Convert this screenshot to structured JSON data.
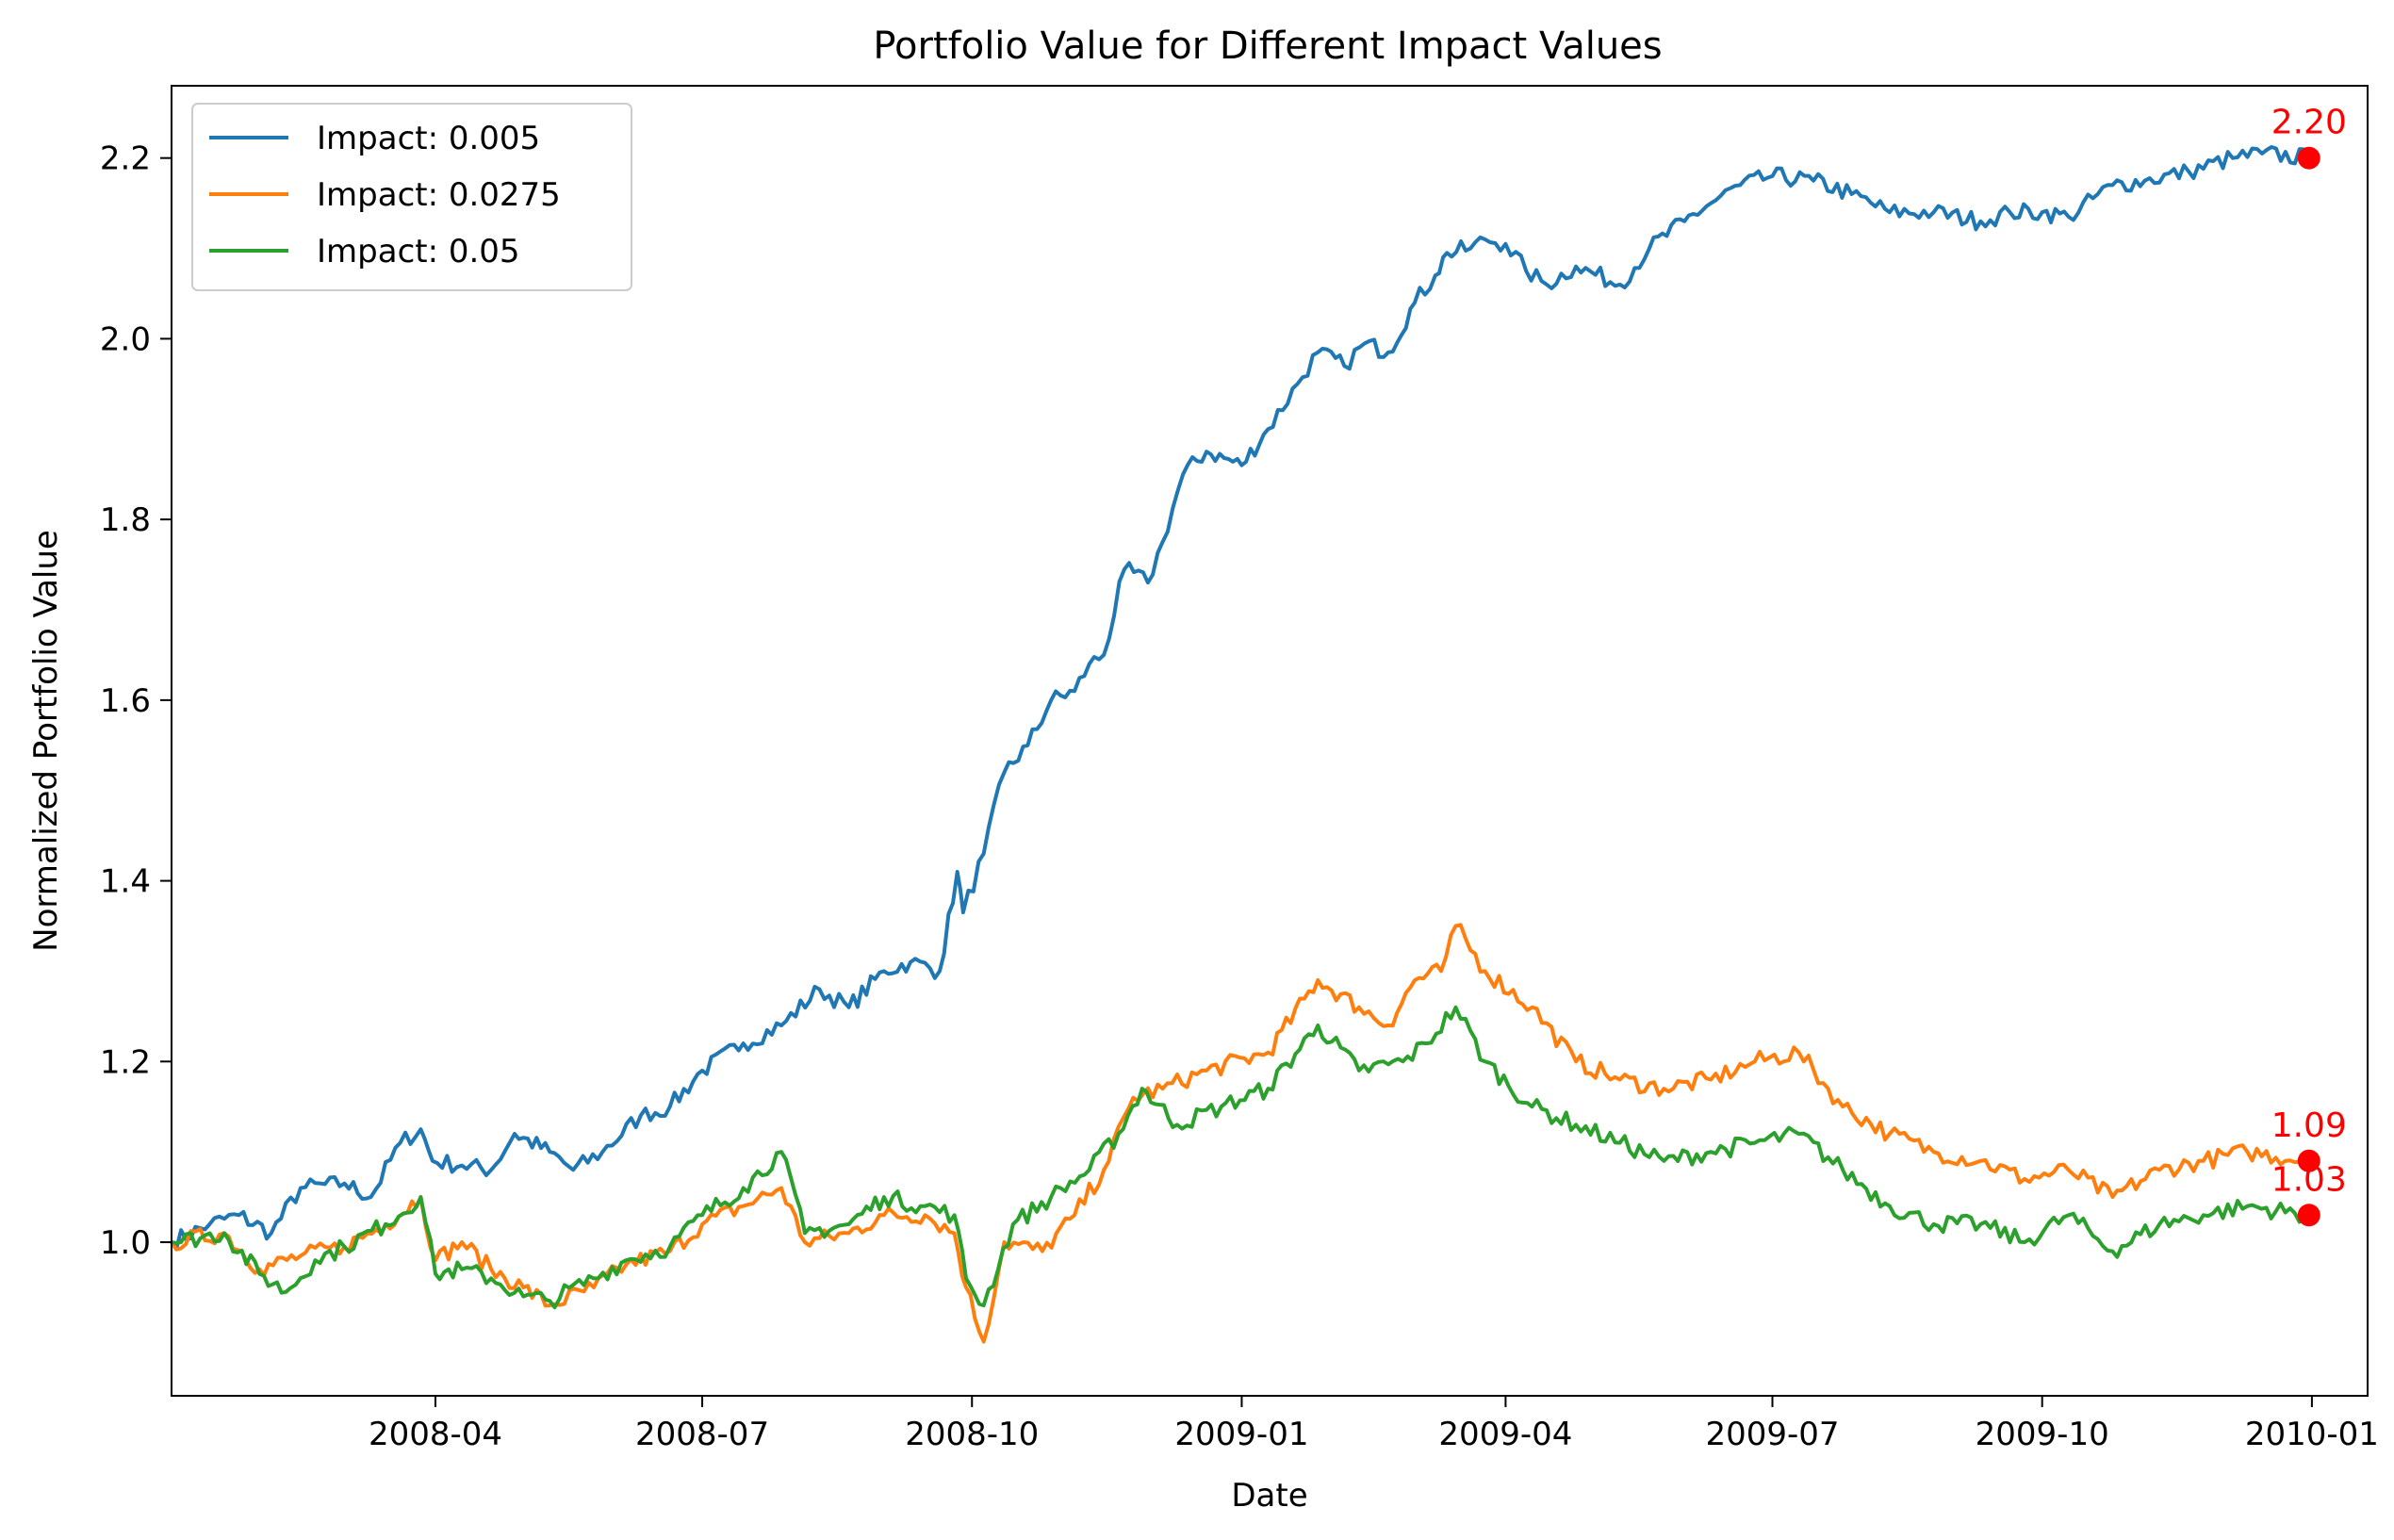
{
  "chart_data": {
    "type": "line",
    "title": "Portfolio Value for Different Impact Values",
    "xlabel": "Date",
    "ylabel": "Normalized Portfolio Value",
    "x_range": [
      "2008-01-02",
      "2010-01-20"
    ],
    "ylim": [
      0.83,
      2.28
    ],
    "y_ticks": [
      1.0,
      1.2,
      1.4,
      1.6,
      1.8,
      2.0,
      2.2
    ],
    "y_tick_labels": [
      "1.0",
      "1.2",
      "1.4",
      "1.6",
      "1.8",
      "2.0",
      "2.2"
    ],
    "x_ticks": [
      "2008-04-01",
      "2008-07-01",
      "2008-10-01",
      "2009-01-01",
      "2009-04-01",
      "2009-07-01",
      "2009-10-01",
      "2010-01-01"
    ],
    "x_tick_labels": [
      "2008-04",
      "2008-07",
      "2008-10",
      "2009-01",
      "2009-04",
      "2009-07",
      "2009-10",
      "2010-01"
    ],
    "grid": false,
    "legend_position": "top-left",
    "series": [
      {
        "name": "Impact: 0.005",
        "color": "#1f77b4",
        "points": [
          [
            "2008-01-02",
            1.0
          ],
          [
            "2008-01-15",
            1.02
          ],
          [
            "2008-01-25",
            1.03
          ],
          [
            "2008-02-05",
            1.01
          ],
          [
            "2008-02-15",
            1.06
          ],
          [
            "2008-03-01",
            1.065
          ],
          [
            "2008-03-10",
            1.05
          ],
          [
            "2008-03-20",
            1.11
          ],
          [
            "2008-03-27",
            1.125
          ],
          [
            "2008-03-31",
            1.09
          ],
          [
            "2008-04-10",
            1.085
          ],
          [
            "2008-04-20",
            1.08
          ],
          [
            "2008-04-28",
            1.12
          ],
          [
            "2008-05-10",
            1.1
          ],
          [
            "2008-05-18",
            1.08
          ],
          [
            "2008-05-28",
            1.1
          ],
          [
            "2008-06-10",
            1.14
          ],
          [
            "2008-06-20",
            1.15
          ],
          [
            "2008-07-01",
            1.19
          ],
          [
            "2008-07-15",
            1.22
          ],
          [
            "2008-07-28",
            1.24
          ],
          [
            "2008-08-10",
            1.28
          ],
          [
            "2008-08-20",
            1.26
          ],
          [
            "2008-09-01",
            1.3
          ],
          [
            "2008-09-10",
            1.31
          ],
          [
            "2008-09-20",
            1.3
          ],
          [
            "2008-09-26",
            1.41
          ],
          [
            "2008-09-28",
            1.365
          ],
          [
            "2008-10-05",
            1.43
          ],
          [
            "2008-10-12",
            1.52
          ],
          [
            "2008-10-20",
            1.55
          ],
          [
            "2008-10-28",
            1.6
          ],
          [
            "2008-11-05",
            1.61
          ],
          [
            "2008-11-10",
            1.64
          ],
          [
            "2008-11-15",
            1.65
          ],
          [
            "2008-11-22",
            1.745
          ],
          [
            "2008-11-30",
            1.73
          ],
          [
            "2008-12-05",
            1.775
          ],
          [
            "2008-12-12",
            1.85
          ],
          [
            "2008-12-20",
            1.875
          ],
          [
            "2009-01-01",
            1.86
          ],
          [
            "2009-01-10",
            1.9
          ],
          [
            "2009-01-20",
            1.95
          ],
          [
            "2009-01-27",
            1.985
          ],
          [
            "2009-02-05",
            1.97
          ],
          [
            "2009-02-12",
            1.995
          ],
          [
            "2009-02-20",
            1.985
          ],
          [
            "2009-03-01",
            2.04
          ],
          [
            "2009-03-08",
            2.07
          ],
          [
            "2009-03-12",
            2.095
          ],
          [
            "2009-03-20",
            2.1
          ],
          [
            "2009-03-25",
            2.11
          ],
          [
            "2009-04-01",
            2.105
          ],
          [
            "2009-04-08",
            2.075
          ],
          [
            "2009-04-15",
            2.06
          ],
          [
            "2009-04-25",
            2.08
          ],
          [
            "2009-05-10",
            2.06
          ],
          [
            "2009-05-20",
            2.1
          ],
          [
            "2009-06-01",
            2.13
          ],
          [
            "2009-06-10",
            2.15
          ],
          [
            "2009-06-20",
            2.17
          ],
          [
            "2009-07-01",
            2.18
          ],
          [
            "2009-07-15",
            2.175
          ],
          [
            "2009-07-28",
            2.16
          ],
          [
            "2009-08-10",
            2.14
          ],
          [
            "2009-08-25",
            2.14
          ],
          [
            "2009-09-10",
            2.13
          ],
          [
            "2009-09-20",
            2.14
          ],
          [
            "2009-10-01",
            2.14
          ],
          [
            "2009-10-10",
            2.135
          ],
          [
            "2009-10-25",
            2.17
          ],
          [
            "2009-11-05",
            2.175
          ],
          [
            "2009-11-20",
            2.185
          ],
          [
            "2009-12-05",
            2.2
          ],
          [
            "2009-12-15",
            2.205
          ],
          [
            "2009-12-31",
            2.2
          ]
        ]
      },
      {
        "name": "Impact: 0.0275",
        "color": "#ff7f0e",
        "points": [
          [
            "2008-01-02",
            1.0
          ],
          [
            "2008-01-20",
            1.01
          ],
          [
            "2008-02-01",
            0.97
          ],
          [
            "2008-02-15",
            0.985
          ],
          [
            "2008-03-01",
            0.995
          ],
          [
            "2008-03-15",
            1.02
          ],
          [
            "2008-03-27",
            1.05
          ],
          [
            "2008-04-01",
            0.98
          ],
          [
            "2008-04-10",
            1.0
          ],
          [
            "2008-04-20",
            0.97
          ],
          [
            "2008-05-01",
            0.95
          ],
          [
            "2008-05-10",
            0.93
          ],
          [
            "2008-05-25",
            0.95
          ],
          [
            "2008-06-05",
            0.975
          ],
          [
            "2008-06-20",
            0.99
          ],
          [
            "2008-07-01",
            1.02
          ],
          [
            "2008-07-15",
            1.04
          ],
          [
            "2008-07-28",
            1.06
          ],
          [
            "2008-08-05",
            1.0
          ],
          [
            "2008-08-20",
            1.01
          ],
          [
            "2008-09-01",
            1.03
          ],
          [
            "2008-09-15",
            1.03
          ],
          [
            "2008-09-25",
            1.01
          ],
          [
            "2008-09-29",
            0.95
          ],
          [
            "2008-10-05",
            0.89
          ],
          [
            "2008-10-12",
            1.0
          ],
          [
            "2008-10-25",
            0.99
          ],
          [
            "2008-11-05",
            1.03
          ],
          [
            "2008-11-15",
            1.08
          ],
          [
            "2008-11-25",
            1.16
          ],
          [
            "2008-12-05",
            1.17
          ],
          [
            "2008-12-20",
            1.19
          ],
          [
            "2009-01-10",
            1.21
          ],
          [
            "2009-01-27",
            1.29
          ],
          [
            "2009-02-10",
            1.26
          ],
          [
            "2009-02-20",
            1.24
          ],
          [
            "2009-03-01",
            1.29
          ],
          [
            "2009-03-10",
            1.3
          ],
          [
            "2009-03-15",
            1.35
          ],
          [
            "2009-03-25",
            1.3
          ],
          [
            "2009-04-10",
            1.26
          ],
          [
            "2009-04-25",
            1.2
          ],
          [
            "2009-05-10",
            1.18
          ],
          [
            "2009-05-25",
            1.17
          ],
          [
            "2009-06-10",
            1.18
          ],
          [
            "2009-06-25",
            1.2
          ],
          [
            "2009-07-10",
            1.21
          ],
          [
            "2009-07-25",
            1.15
          ],
          [
            "2009-08-10",
            1.12
          ],
          [
            "2009-08-25",
            1.1
          ],
          [
            "2009-09-10",
            1.09
          ],
          [
            "2009-09-25",
            1.07
          ],
          [
            "2009-10-10",
            1.08
          ],
          [
            "2009-10-25",
            1.05
          ],
          [
            "2009-11-10",
            1.08
          ],
          [
            "2009-11-25",
            1.09
          ],
          [
            "2009-12-10",
            1.1
          ],
          [
            "2009-12-31",
            1.09
          ]
        ]
      },
      {
        "name": "Impact: 0.05",
        "color": "#2ca02c",
        "points": [
          [
            "2008-01-02",
            1.0
          ],
          [
            "2008-01-20",
            1.01
          ],
          [
            "2008-02-01",
            0.965
          ],
          [
            "2008-02-10",
            0.945
          ],
          [
            "2008-02-20",
            0.98
          ],
          [
            "2008-03-01",
            0.995
          ],
          [
            "2008-03-15",
            1.02
          ],
          [
            "2008-03-27",
            1.05
          ],
          [
            "2008-04-01",
            0.965
          ],
          [
            "2008-04-10",
            0.97
          ],
          [
            "2008-04-20",
            0.96
          ],
          [
            "2008-05-01",
            0.94
          ],
          [
            "2008-05-10",
            0.935
          ],
          [
            "2008-05-25",
            0.96
          ],
          [
            "2008-06-05",
            0.98
          ],
          [
            "2008-06-20",
            0.995
          ],
          [
            "2008-07-01",
            1.03
          ],
          [
            "2008-07-15",
            1.06
          ],
          [
            "2008-07-28",
            1.1
          ],
          [
            "2008-08-05",
            1.01
          ],
          [
            "2008-08-20",
            1.02
          ],
          [
            "2008-09-01",
            1.05
          ],
          [
            "2008-09-15",
            1.04
          ],
          [
            "2008-09-25",
            1.03
          ],
          [
            "2008-09-29",
            0.96
          ],
          [
            "2008-10-05",
            0.93
          ],
          [
            "2008-10-15",
            1.02
          ],
          [
            "2008-10-28",
            1.05
          ],
          [
            "2008-11-10",
            1.08
          ],
          [
            "2008-11-20",
            1.12
          ],
          [
            "2008-11-28",
            1.17
          ],
          [
            "2008-12-10",
            1.13
          ],
          [
            "2008-12-25",
            1.15
          ],
          [
            "2009-01-10",
            1.17
          ],
          [
            "2009-01-27",
            1.24
          ],
          [
            "2009-02-10",
            1.19
          ],
          [
            "2009-02-25",
            1.2
          ],
          [
            "2009-03-05",
            1.22
          ],
          [
            "2009-03-15",
            1.26
          ],
          [
            "2009-03-25",
            1.2
          ],
          [
            "2009-04-10",
            1.15
          ],
          [
            "2009-04-25",
            1.13
          ],
          [
            "2009-05-10",
            1.11
          ],
          [
            "2009-05-25",
            1.09
          ],
          [
            "2009-06-10",
            1.1
          ],
          [
            "2009-06-25",
            1.11
          ],
          [
            "2009-07-10",
            1.12
          ],
          [
            "2009-07-25",
            1.08
          ],
          [
            "2009-08-10",
            1.04
          ],
          [
            "2009-08-25",
            1.02
          ],
          [
            "2009-09-10",
            1.02
          ],
          [
            "2009-09-25",
            1.0
          ],
          [
            "2009-10-10",
            1.03
          ],
          [
            "2009-10-25",
            0.99
          ],
          [
            "2009-11-10",
            1.02
          ],
          [
            "2009-11-25",
            1.03
          ],
          [
            "2009-12-10",
            1.04
          ],
          [
            "2009-12-31",
            1.03
          ]
        ]
      }
    ],
    "end_markers": [
      {
        "date": "2009-12-31",
        "value": 2.2,
        "label": "2.20",
        "color": "#ff0000"
      },
      {
        "date": "2009-12-31",
        "value": 1.09,
        "label": "1.09",
        "color": "#ff0000"
      },
      {
        "date": "2009-12-31",
        "value": 1.03,
        "label": "1.03",
        "color": "#ff0000"
      }
    ]
  }
}
